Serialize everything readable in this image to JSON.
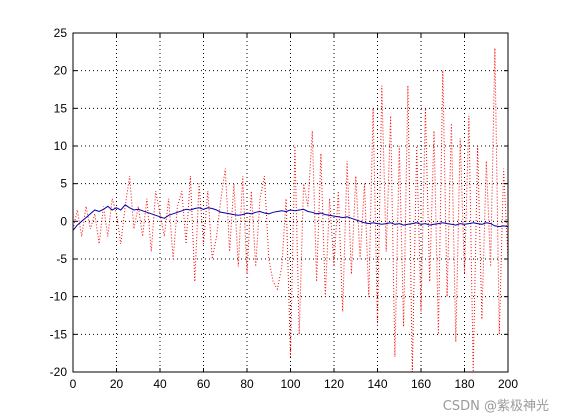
{
  "chart_data": {
    "type": "line",
    "title": "",
    "xlabel": "",
    "ylabel": "",
    "xlim": [
      0,
      200
    ],
    "ylim": [
      -20,
      25
    ],
    "grid": true,
    "x_ticks": [
      0,
      20,
      40,
      60,
      80,
      100,
      120,
      140,
      160,
      180,
      200
    ],
    "y_ticks": [
      -20,
      -15,
      -10,
      -5,
      0,
      5,
      10,
      15,
      20,
      25
    ],
    "series": [
      {
        "style": "dotted",
        "color": "#ff0000",
        "x": [
          0,
          2,
          4,
          6,
          8,
          10,
          12,
          14,
          16,
          18,
          20,
          22,
          24,
          26,
          28,
          30,
          32,
          34,
          36,
          38,
          40,
          42,
          44,
          46,
          48,
          50,
          52,
          54,
          56,
          58,
          60,
          62,
          64,
          66,
          68,
          70,
          72,
          74,
          76,
          78,
          80,
          82,
          84,
          86,
          88,
          90,
          92,
          94,
          96,
          98,
          100,
          102,
          104,
          106,
          108,
          110,
          112,
          114,
          116,
          118,
          120,
          122,
          124,
          126,
          128,
          130,
          132,
          134,
          136,
          138,
          140,
          142,
          144,
          146,
          148,
          150,
          152,
          154,
          156,
          158,
          160,
          162,
          164,
          166,
          168,
          170,
          172,
          174,
          176,
          178,
          180,
          182,
          184,
          186,
          188,
          190,
          192,
          194,
          196,
          198,
          200
        ],
        "y": [
          -1,
          1.5,
          -2,
          2,
          -1,
          1,
          -3,
          2,
          -2,
          3,
          1,
          -3,
          2,
          6,
          -1,
          2,
          -2,
          3,
          -4,
          4,
          1,
          -2,
          3,
          -5,
          2,
          4,
          -3,
          6,
          -8,
          5,
          -3,
          4,
          -5,
          -2,
          3,
          7,
          -4,
          5,
          -6,
          6,
          -7,
          4,
          -6,
          3,
          6,
          -5,
          -8,
          -9,
          -6,
          3,
          -18,
          10,
          -15,
          5,
          2,
          12,
          -8,
          9,
          -10,
          3,
          -6,
          4,
          -12,
          8,
          -7,
          6,
          -5,
          5,
          -10,
          15,
          -14,
          18,
          -4,
          14,
          -18,
          10,
          -14,
          18,
          -20,
          10,
          -12,
          15,
          -8,
          12,
          -15,
          20,
          -10,
          13,
          -16,
          11,
          -7,
          14,
          -20,
          10,
          -13,
          8,
          -6,
          23,
          -15,
          7,
          -5
        ]
      },
      {
        "style": "solid",
        "color": "#0000aa",
        "x": [
          0,
          2,
          4,
          6,
          8,
          10,
          12,
          14,
          16,
          18,
          20,
          22,
          24,
          26,
          28,
          30,
          32,
          34,
          36,
          38,
          40,
          42,
          44,
          46,
          48,
          50,
          52,
          54,
          56,
          58,
          60,
          62,
          64,
          66,
          68,
          70,
          72,
          74,
          76,
          78,
          80,
          82,
          84,
          86,
          88,
          90,
          92,
          94,
          96,
          98,
          100,
          102,
          104,
          106,
          108,
          110,
          112,
          114,
          116,
          118,
          120,
          122,
          124,
          126,
          128,
          130,
          132,
          134,
          136,
          138,
          140,
          142,
          144,
          146,
          148,
          150,
          152,
          154,
          156,
          158,
          160,
          162,
          164,
          166,
          168,
          170,
          172,
          174,
          176,
          178,
          180,
          182,
          184,
          186,
          188,
          190,
          192,
          194,
          196,
          198,
          200
        ],
        "y": [
          -1.2,
          -0.5,
          0,
          0.5,
          1,
          1.5,
          1.3,
          1.6,
          2,
          1.5,
          1.8,
          1.5,
          2.2,
          1.8,
          1.5,
          1.6,
          1.4,
          1.2,
          1,
          0.8,
          0.6,
          0.4,
          0.8,
          1,
          1.2,
          1.4,
          1.6,
          1.5,
          1.7,
          1.8,
          1.6,
          1.8,
          1.7,
          1.5,
          1.2,
          1.1,
          1.0,
          0.9,
          0.8,
          0.9,
          1.1,
          1.0,
          1.2,
          1.3,
          1.1,
          1.0,
          1.2,
          1.3,
          1.4,
          1.3,
          1.5,
          1.4,
          1.5,
          1.6,
          1.3,
          1.2,
          1.0,
          1.1,
          0.9,
          0.8,
          0.7,
          0.6,
          0.5,
          0.6,
          0.4,
          0.2,
          0,
          -0.2,
          -0.3,
          -0.2,
          -0.3,
          -0.4,
          -0.3,
          -0.2,
          -0.4,
          -0.3,
          -0.5,
          -0.4,
          -0.3,
          -0.2,
          -0.4,
          -0.3,
          -0.5,
          -0.4,
          -0.3,
          -0.2,
          -0.3,
          -0.4,
          -0.5,
          -0.3,
          -0.4,
          -0.3,
          -0.2,
          -0.3,
          -0.4,
          -0.2,
          -0.3,
          -0.6,
          -0.7,
          -0.6,
          -0.7
        ]
      }
    ]
  },
  "watermark": "CSDN @紫极神光"
}
